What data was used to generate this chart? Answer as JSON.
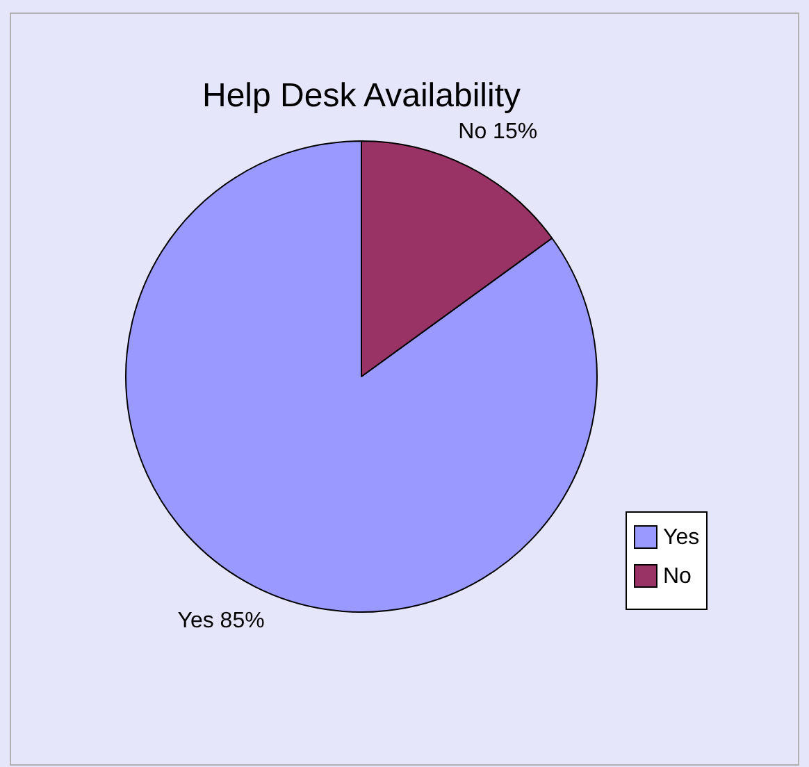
{
  "chart_data": {
    "type": "pie",
    "title": "Help Desk Availability",
    "categories": [
      "Yes",
      "No"
    ],
    "values": [
      85,
      15
    ],
    "colors": [
      "#9999ff",
      "#993366"
    ],
    "value_labels": [
      "Yes 85%",
      "No 15%"
    ],
    "legend": "right"
  }
}
